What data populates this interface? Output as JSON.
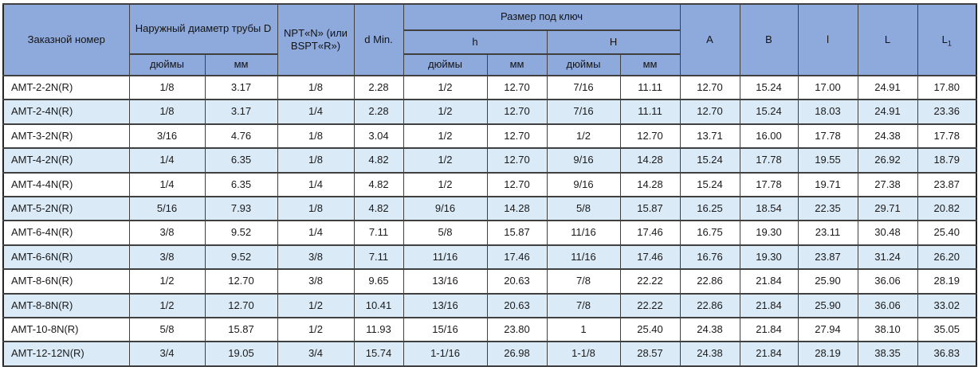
{
  "colors": {
    "header_bg": "#8EA9DB",
    "stripe_bg": "#DBEAF7",
    "border": "#404040",
    "text": "#1a1a1a"
  },
  "table": {
    "header": {
      "order_number": "Заказной номер",
      "outer_diameter": "Наружный диаметр трубы D",
      "thread": "NPT«N» (или BSPT«R»)",
      "d_min": "d Min.",
      "wrench_size": "Размер под ключ",
      "h_small": "h",
      "h_big": "H",
      "a": "A",
      "b": "B",
      "l_small": "l",
      "l_big": "L",
      "l1": {
        "base": "L",
        "sub": "1"
      }
    },
    "units": {
      "inches": "дюймы",
      "mm": "мм"
    },
    "rows": [
      {
        "cells": [
          "AMT-2-2N(R)",
          "1/8",
          "3.17",
          "1/8",
          "2.28",
          "1/2",
          "12.70",
          "7/16",
          "11.11",
          "12.70",
          "15.24",
          "17.00",
          "24.91",
          "17.80"
        ]
      },
      {
        "cells": [
          "AMT-2-4N(R)",
          "1/8",
          "3.17",
          "1/4",
          "2.28",
          "1/2",
          "12.70",
          "7/16",
          "11.11",
          "12.70",
          "15.24",
          "18.03",
          "24.91",
          "23.36"
        ]
      },
      {
        "cells": [
          "AMT-3-2N(R)",
          "3/16",
          "4.76",
          "1/8",
          "3.04",
          "1/2",
          "12.70",
          "1/2",
          "12.70",
          "13.71",
          "16.00",
          "17.78",
          "24.38",
          "17.78"
        ]
      },
      {
        "cells": [
          "AMT-4-2N(R)",
          "1/4",
          "6.35",
          "1/8",
          "4.82",
          "1/2",
          "12.70",
          "9/16",
          "14.28",
          "15.24",
          "17.78",
          "19.55",
          "26.92",
          "18.79"
        ]
      },
      {
        "cells": [
          "AMT-4-4N(R)",
          "1/4",
          "6.35",
          "1/4",
          "4.82",
          "1/2",
          "12.70",
          "9/16",
          "14.28",
          "15.24",
          "17.78",
          "19.71",
          "27.38",
          "23.87"
        ]
      },
      {
        "cells": [
          "AMT-5-2N(R)",
          "5/16",
          "7.93",
          "1/8",
          "4.82",
          "9/16",
          "14.28",
          "5/8",
          "15.87",
          "16.25",
          "18.54",
          "22.35",
          "29.71",
          "20.82"
        ]
      },
      {
        "cells": [
          "AMT-6-4N(R)",
          "3/8",
          "9.52",
          "1/4",
          "7.11",
          "5/8",
          "15.87",
          "11/16",
          "17.46",
          "16.75",
          "19.30",
          "23.11",
          "30.48",
          "25.40"
        ]
      },
      {
        "cells": [
          "AMT-6-6N(R)",
          "3/8",
          "9.52",
          "3/8",
          "7.11",
          "11/16",
          "17.46",
          "11/16",
          "17.46",
          "16.76",
          "19.30",
          "23.87",
          "31.24",
          "26.20"
        ]
      },
      {
        "cells": [
          "AMT-8-6N(R)",
          "1/2",
          "12.70",
          "3/8",
          "9.65",
          "13/16",
          "20.63",
          "7/8",
          "22.22",
          "22.86",
          "21.84",
          "25.90",
          "36.06",
          "28.19"
        ]
      },
      {
        "cells": [
          "AMT-8-8N(R)",
          "1/2",
          "12.70",
          "1/2",
          "10.41",
          "13/16",
          "20.63",
          "7/8",
          "22.22",
          "22.86",
          "21.84",
          "25.90",
          "36.06",
          "33.02"
        ]
      },
      {
        "cells": [
          "AMT-10-8N(R)",
          "5/8",
          "15.87",
          "1/2",
          "11.93",
          "15/16",
          "23.80",
          "1",
          "25.40",
          "24.38",
          "21.84",
          "27.94",
          "38.10",
          "35.05"
        ]
      },
      {
        "cells": [
          "AMT-12-12N(R)",
          "3/4",
          "19.05",
          "3/4",
          "15.74",
          "1-1/16",
          "26.98",
          "1-1/8",
          "28.57",
          "24.38",
          "21.84",
          "28.19",
          "38.35",
          "36.83"
        ]
      }
    ]
  }
}
